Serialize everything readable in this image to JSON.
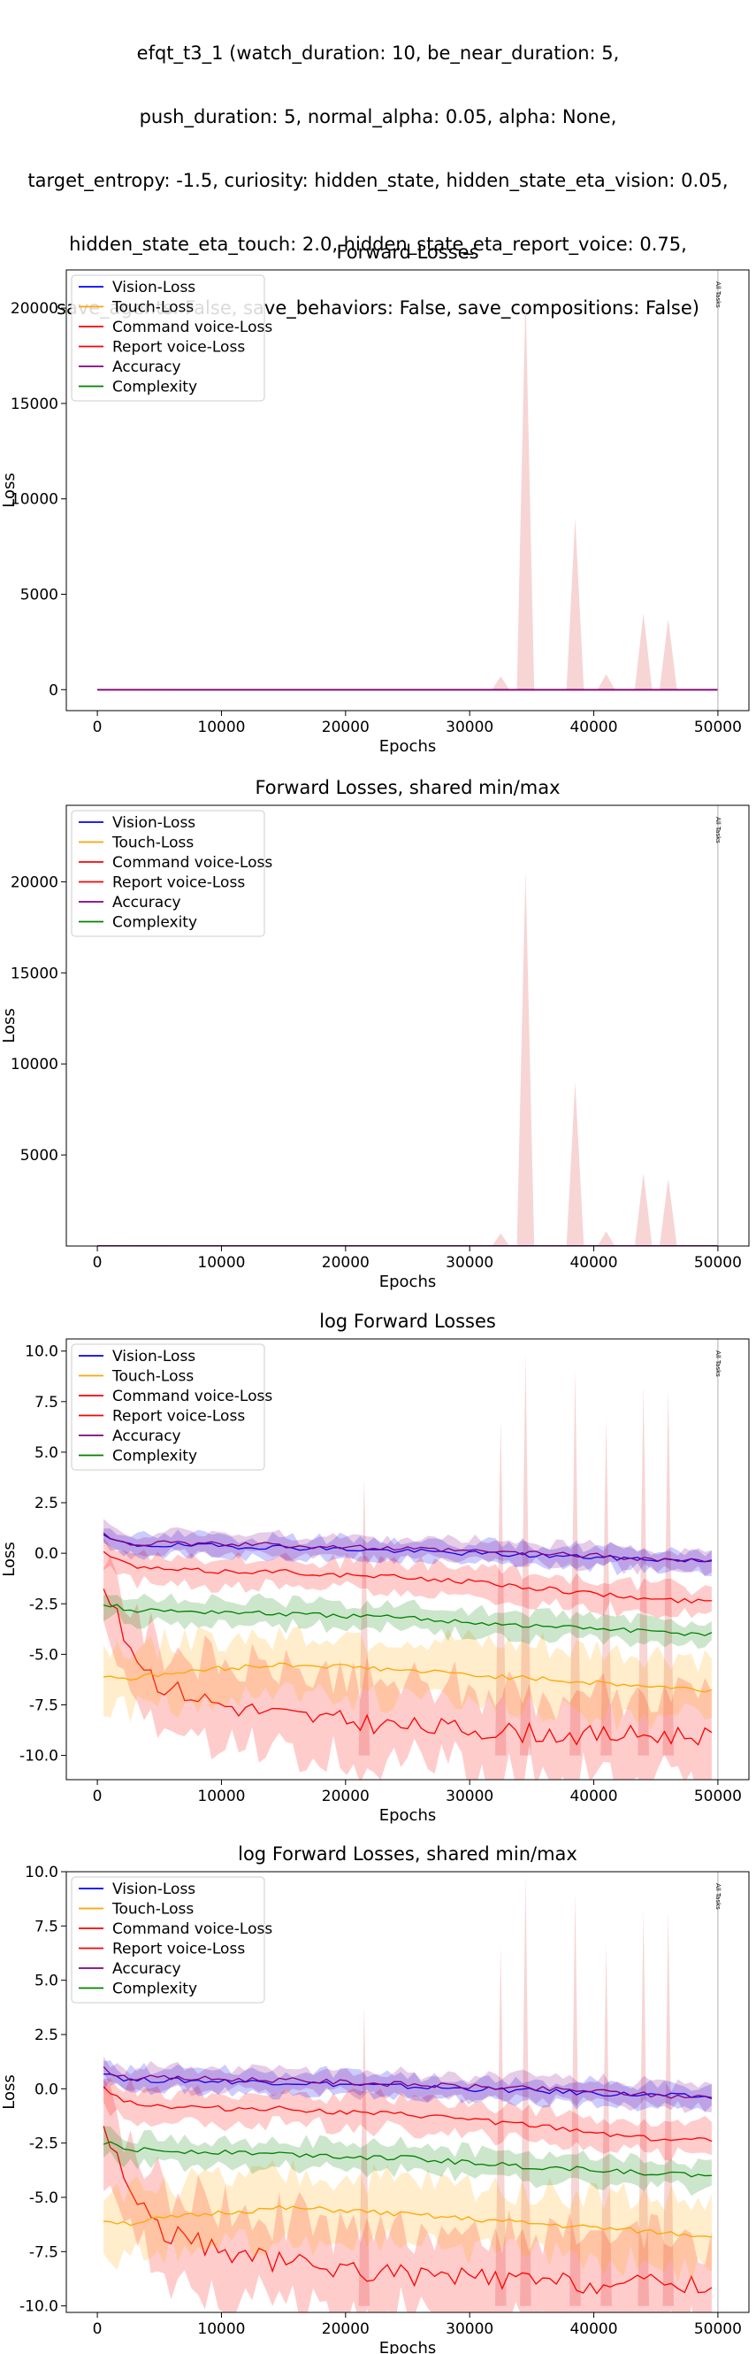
{
  "figure": {
    "title_lines": [
      "efqt_t3_1 (watch_duration: 10, be_near_duration: 5,",
      "push_duration: 5, normal_alpha: 0.05, alpha: None,",
      "target_entropy: -1.5, curiosity: hidden_state, hidden_state_eta_vision: 0.05,",
      "hidden_state_eta_touch: 2.0, hidden_state_eta_report_voice: 0.75,",
      "save_agents: False, save_behaviors: False, save_compositions: False)"
    ]
  },
  "series_styles": [
    {
      "name": "Vision-Loss",
      "color": "#0000ff"
    },
    {
      "name": "Touch-Loss",
      "color": "#ffa500"
    },
    {
      "name": "Command voice-Loss",
      "color": "#ff0000"
    },
    {
      "name": "Report voice-Loss",
      "color": "#ff0000"
    },
    {
      "name": "Accuracy",
      "color": "#800080"
    },
    {
      "name": "Complexity",
      "color": "#008000"
    }
  ],
  "chart_data": [
    {
      "type": "line",
      "title": "Forward Losses",
      "xlabel": "Epochs",
      "ylabel": "Loss",
      "xlim": [
        -2500,
        52500
      ],
      "ylim": [
        -1100,
        22000
      ],
      "xticks": [
        0,
        10000,
        20000,
        30000,
        40000,
        50000
      ],
      "yticks": [
        0,
        5000,
        10000,
        15000,
        20000
      ],
      "legend_position": "upper-left",
      "vline": {
        "x": 50000,
        "label": "All Tasks"
      },
      "spikes": [
        {
          "x": 32500,
          "y": 700
        },
        {
          "x": 34500,
          "y": 20600
        },
        {
          "x": 38500,
          "y": 9000
        },
        {
          "x": 41000,
          "y": 800
        },
        {
          "x": 44000,
          "y": 4000
        },
        {
          "x": 46000,
          "y": 3700
        }
      ],
      "series": [
        {
          "name": "Vision-Loss",
          "values": [
            0.5,
            0.3,
            0.0,
            -0.2,
            -0.3,
            -0.4
          ]
        },
        {
          "name": "Touch-Loss",
          "values": [
            -6.0,
            -5.8,
            -5.5,
            -5.8,
            -6.2,
            -6.8
          ]
        },
        {
          "name": "Command voice-Loss",
          "values": [
            -1.0,
            -6.5,
            -7.8,
            -8.5,
            -9.0,
            -9.0
          ]
        },
        {
          "name": "Report voice-Loss",
          "values": [
            -0.4,
            -0.9,
            -1.2,
            -1.6,
            -2.0,
            -2.4
          ]
        },
        {
          "name": "Accuracy",
          "values": [
            0.6,
            0.4,
            0.2,
            0.0,
            -0.2,
            -0.4
          ]
        },
        {
          "name": "Complexity",
          "values": [
            -2.6,
            -2.9,
            -3.1,
            -3.4,
            -3.7,
            -4.0
          ]
        }
      ],
      "x": [
        0,
        10000,
        20000,
        30000,
        40000,
        50000
      ]
    },
    {
      "type": "line",
      "title": "Forward Losses, shared min/max",
      "xlabel": "Epochs",
      "ylabel": "Loss",
      "xlim": [
        -2500,
        52500
      ],
      "ylim": [
        0,
        24200
      ],
      "xticks": [
        0,
        10000,
        20000,
        30000,
        40000,
        50000
      ],
      "yticks": [
        5000,
        10000,
        15000,
        20000
      ],
      "legend_position": "upper-left",
      "vline": {
        "x": 50000,
        "label": "All Tasks"
      },
      "spikes": [
        {
          "x": 32500,
          "y": 700
        },
        {
          "x": 34500,
          "y": 20600
        },
        {
          "x": 38500,
          "y": 9000
        },
        {
          "x": 41000,
          "y": 800
        },
        {
          "x": 44000,
          "y": 4000
        },
        {
          "x": 46000,
          "y": 3700
        }
      ],
      "series": [
        {
          "name": "Vision-Loss",
          "values": [
            0.5,
            0.3,
            0.0,
            -0.2,
            -0.3,
            -0.4
          ]
        },
        {
          "name": "Touch-Loss",
          "values": [
            -6.0,
            -5.8,
            -5.5,
            -5.8,
            -6.2,
            -6.8
          ]
        },
        {
          "name": "Command voice-Loss",
          "values": [
            -1.0,
            -6.5,
            -7.8,
            -8.5,
            -9.0,
            -9.0
          ]
        },
        {
          "name": "Report voice-Loss",
          "values": [
            -0.4,
            -0.9,
            -1.2,
            -1.6,
            -2.0,
            -2.4
          ]
        },
        {
          "name": "Accuracy",
          "values": [
            0.6,
            0.4,
            0.2,
            0.0,
            -0.2,
            -0.4
          ]
        },
        {
          "name": "Complexity",
          "values": [
            -2.6,
            -2.9,
            -3.1,
            -3.4,
            -3.7,
            -4.0
          ]
        }
      ],
      "x": [
        0,
        10000,
        20000,
        30000,
        40000,
        50000
      ]
    },
    {
      "type": "line",
      "title": "log Forward Losses",
      "xlabel": "Epochs",
      "ylabel": "Loss",
      "xlim": [
        -2500,
        52500
      ],
      "ylim": [
        -11.2,
        10.6
      ],
      "xticks": [
        0,
        10000,
        20000,
        30000,
        40000,
        50000
      ],
      "yticks": [
        -10.0,
        -7.5,
        -5.0,
        -2.5,
        0.0,
        2.5,
        5.0,
        7.5,
        10.0
      ],
      "legend_position": "upper-left",
      "vline": {
        "x": 50000,
        "label": "All Tasks"
      },
      "spikes": [
        {
          "x": 21500,
          "y": 3.8
        },
        {
          "x": 32500,
          "y": 6.6
        },
        {
          "x": 34500,
          "y": 9.9
        },
        {
          "x": 38500,
          "y": 9.1
        },
        {
          "x": 41000,
          "y": 6.7
        },
        {
          "x": 44000,
          "y": 8.3
        },
        {
          "x": 46000,
          "y": 8.2
        }
      ],
      "x": [
        0,
        2500,
        5000,
        10000,
        15000,
        20000,
        25000,
        30000,
        35000,
        40000,
        45000,
        50000
      ],
      "series": [
        {
          "name": "Vision-Loss",
          "values": [
            0.9,
            0.4,
            0.4,
            0.35,
            0.3,
            0.2,
            0.1,
            0.0,
            -0.1,
            -0.2,
            -0.3,
            -0.4
          ]
        },
        {
          "name": "Touch-Loss",
          "values": [
            -6.0,
            -6.2,
            -6.0,
            -5.7,
            -5.5,
            -5.6,
            -5.8,
            -6.0,
            -6.2,
            -6.4,
            -6.6,
            -6.8
          ]
        },
        {
          "name": "Command voice-Loss",
          "values": [
            -1.0,
            -4.5,
            -6.5,
            -7.5,
            -8.0,
            -8.3,
            -8.6,
            -8.7,
            -8.9,
            -9.0,
            -9.0,
            -9.0
          ]
        },
        {
          "name": "Report voice-Loss",
          "values": [
            0.2,
            -0.6,
            -0.8,
            -0.9,
            -0.9,
            -1.1,
            -1.2,
            -1.4,
            -1.7,
            -2.0,
            -2.3,
            -2.4
          ]
        },
        {
          "name": "Accuracy",
          "values": [
            1.0,
            0.5,
            0.5,
            0.45,
            0.4,
            0.3,
            0.2,
            0.1,
            0.0,
            -0.1,
            -0.3,
            -0.4
          ]
        },
        {
          "name": "Complexity",
          "values": [
            -2.4,
            -2.8,
            -2.85,
            -2.9,
            -3.0,
            -3.1,
            -3.2,
            -3.4,
            -3.6,
            -3.7,
            -3.9,
            -4.0
          ]
        }
      ]
    },
    {
      "type": "line",
      "title": "log Forward Losses, shared min/max",
      "xlabel": "Epochs",
      "ylabel": "Loss",
      "xlim": [
        -2500,
        52500
      ],
      "ylim": [
        -10.3,
        10.0
      ],
      "xticks": [
        0,
        10000,
        20000,
        30000,
        40000,
        50000
      ],
      "yticks": [
        -10.0,
        -7.5,
        -5.0,
        -2.5,
        0.0,
        2.5,
        5.0,
        7.5,
        10.0
      ],
      "legend_position": "upper-left",
      "vline": {
        "x": 50000,
        "label": "All Tasks"
      },
      "spikes": [
        {
          "x": 21500,
          "y": 3.8
        },
        {
          "x": 32500,
          "y": 6.6
        },
        {
          "x": 34500,
          "y": 9.9
        },
        {
          "x": 38500,
          "y": 9.1
        },
        {
          "x": 41000,
          "y": 6.7
        },
        {
          "x": 44000,
          "y": 8.3
        },
        {
          "x": 46000,
          "y": 8.2
        }
      ],
      "x": [
        0,
        2500,
        5000,
        10000,
        15000,
        20000,
        25000,
        30000,
        35000,
        40000,
        45000,
        50000
      ],
      "series": [
        {
          "name": "Vision-Loss",
          "values": [
            0.9,
            0.4,
            0.4,
            0.35,
            0.3,
            0.2,
            0.1,
            0.0,
            -0.1,
            -0.2,
            -0.3,
            -0.4
          ]
        },
        {
          "name": "Touch-Loss",
          "values": [
            -6.0,
            -6.2,
            -6.0,
            -5.7,
            -5.5,
            -5.6,
            -5.8,
            -6.0,
            -6.2,
            -6.4,
            -6.6,
            -6.8
          ]
        },
        {
          "name": "Command voice-Loss",
          "values": [
            -1.0,
            -4.5,
            -6.5,
            -7.5,
            -8.0,
            -8.3,
            -8.6,
            -8.7,
            -8.9,
            -9.0,
            -9.0,
            -9.0
          ]
        },
        {
          "name": "Report voice-Loss",
          "values": [
            0.2,
            -0.6,
            -0.8,
            -0.9,
            -0.9,
            -1.1,
            -1.2,
            -1.4,
            -1.7,
            -2.0,
            -2.3,
            -2.4
          ]
        },
        {
          "name": "Accuracy",
          "values": [
            1.0,
            0.5,
            0.5,
            0.45,
            0.4,
            0.3,
            0.2,
            0.1,
            0.0,
            -0.1,
            -0.3,
            -0.4
          ]
        },
        {
          "name": "Complexity",
          "values": [
            -2.4,
            -2.8,
            -2.85,
            -2.9,
            -3.0,
            -3.1,
            -3.2,
            -3.4,
            -3.6,
            -3.7,
            -3.9,
            -4.0
          ]
        }
      ]
    }
  ]
}
